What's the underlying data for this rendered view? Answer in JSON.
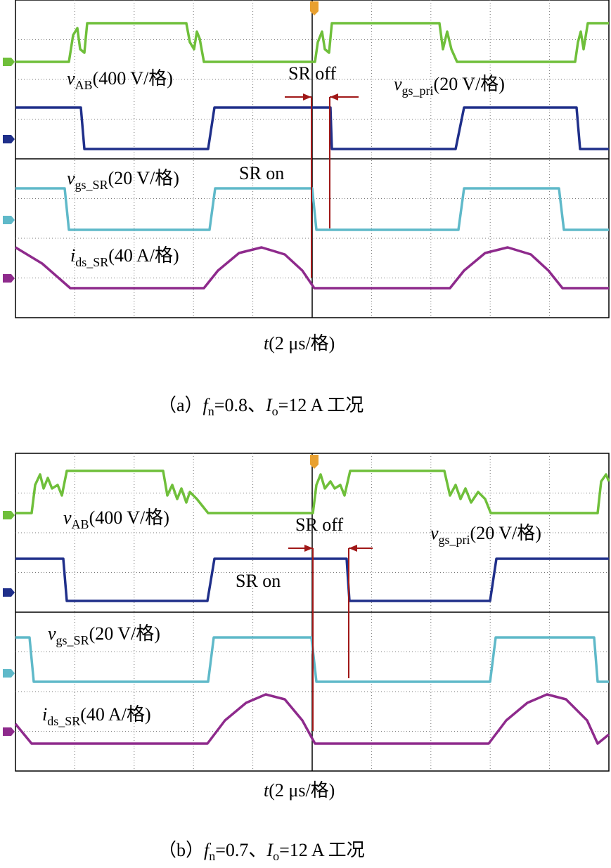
{
  "panels": [
    {
      "labels": {
        "v_ab": {
          "symbol": "v",
          "sub": "AB",
          "scale": "(400 V/格)"
        },
        "sr_off": "SR off",
        "v_gs_pri": {
          "symbol": "v",
          "sub": "gs_pri",
          "scale": "(20 V/格)"
        },
        "sr_on": "SR on",
        "v_gs_sr": {
          "symbol": "v",
          "sub": "gs_SR",
          "scale": "(20 V/格)"
        },
        "i_ds_sr": {
          "symbol": "i",
          "sub": "ds_SR",
          "scale": "(40 A/格)"
        }
      },
      "time_axis": {
        "symbol": "t",
        "scale": "(2 μs/格)"
      },
      "caption": {
        "prefix": "（a）",
        "f_symbol": "f",
        "f_sub": "n",
        "f_value": "=0.8、",
        "i_symbol": "I",
        "i_sub": "o",
        "i_value": "=12 A 工况"
      }
    },
    {
      "labels": {
        "v_ab": {
          "symbol": "v",
          "sub": "AB",
          "scale": "(400 V/格)"
        },
        "sr_off": "SR off",
        "v_gs_pri": {
          "symbol": "v",
          "sub": "gs_pri",
          "scale": "(20 V/格)"
        },
        "sr_on": "SR on",
        "v_gs_sr": {
          "symbol": "v",
          "sub": "gs_SR",
          "scale": "(20 V/格)"
        },
        "i_ds_sr": {
          "symbol": "i",
          "sub": "ds_SR",
          "scale": "(40 A/格)"
        }
      },
      "time_axis": {
        "symbol": "t",
        "scale": "(2 μs/格)"
      },
      "caption": {
        "prefix": "（b）",
        "f_symbol": "f",
        "f_sub": "n",
        "f_value": "=0.7、",
        "i_symbol": "I",
        "i_sub": "o",
        "i_value": "=12 A 工况"
      }
    }
  ]
}
